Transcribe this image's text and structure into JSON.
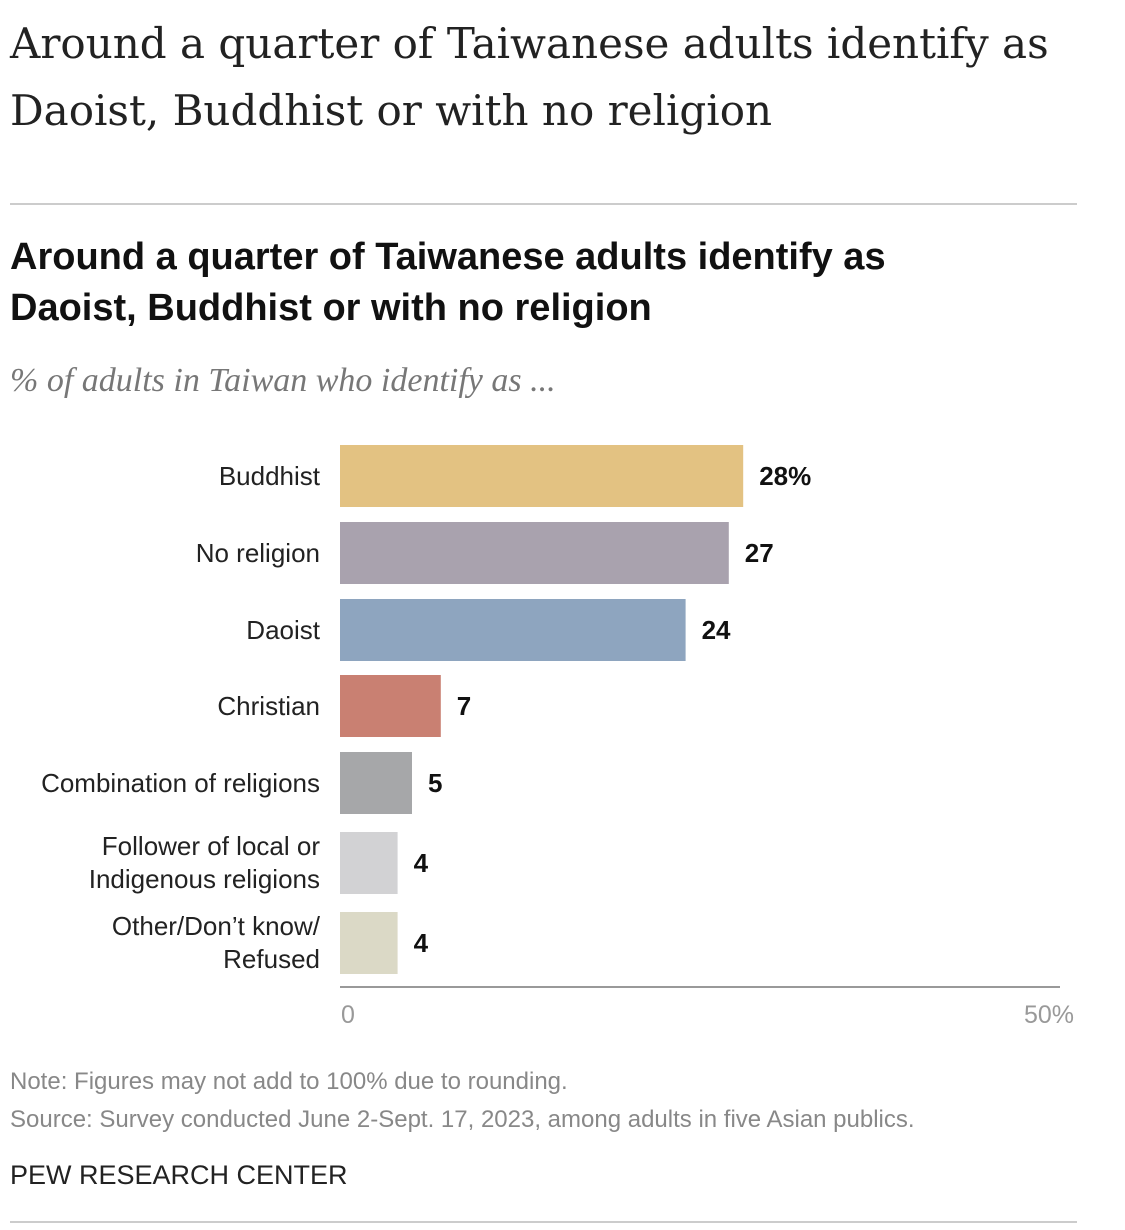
{
  "page_title": "Around a quarter of Taiwanese adults identify as Daoist, Buddhist or with no religion",
  "chart_data": {
    "type": "bar",
    "orientation": "horizontal",
    "title": "Around a quarter of Taiwanese adults identify as Daoist, Buddhist or with no religion",
    "subtitle": "% of adults in Taiwan who identify as ...",
    "categories": [
      "Buddhist",
      "No religion",
      "Daoist",
      "Christian",
      "Combination of religions",
      "Follower of local or\nIndigenous religions",
      "Other/Don’t know/\nRefused"
    ],
    "values": [
      28,
      27,
      24,
      7,
      5,
      4,
      4
    ],
    "value_labels": [
      "28%",
      "27",
      "24",
      "7",
      "5",
      "4",
      "4"
    ],
    "colors": [
      "#e3c282",
      "#a9a2ae",
      "#8ea5bf",
      "#c98072",
      "#a6a7a9",
      "#d2d2d4",
      "#dbd9c6"
    ],
    "xlim": [
      0,
      50
    ],
    "xticks": [
      0,
      {
        "value": 50,
        "label": "50%"
      }
    ],
    "grid": false,
    "note": "Note: Figures may not add to 100% due to rounding.",
    "source": "Source: Survey conducted June 2-Sept. 17, 2023, among adults in five Asian publics.",
    "credit": "PEW RESEARCH CENTER"
  }
}
